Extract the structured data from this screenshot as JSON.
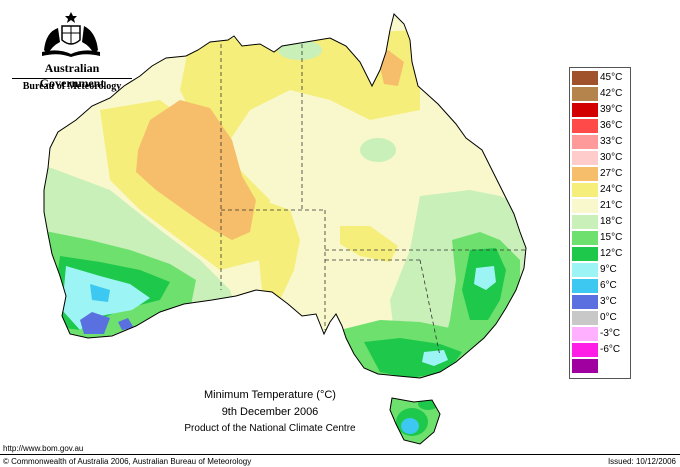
{
  "header": {
    "government": "Australian Government",
    "bureau": "Bureau of Meteorology"
  },
  "caption": {
    "title": "Minimum Temperature (°C)",
    "date": "9th December 2006",
    "product": "Product of the National Climate Centre"
  },
  "footer": {
    "url": "http://www.bom.gov.au",
    "copyright": "© Commonwealth of Australia 2006, Australian Bureau of Meteorology",
    "issued": "Issued: 10/12/2006"
  },
  "legend": [
    {
      "label": "45°C",
      "color": "#a0522d"
    },
    {
      "label": "42°C",
      "color": "#b5834c"
    },
    {
      "label": "39°C",
      "color": "#d20000"
    },
    {
      "label": "36°C",
      "color": "#ff4a4a"
    },
    {
      "label": "33°C",
      "color": "#ff9a9a"
    },
    {
      "label": "30°C",
      "color": "#ffcccc"
    },
    {
      "label": "27°C",
      "color": "#f6be6a"
    },
    {
      "label": "24°C",
      "color": "#f6ee7a"
    },
    {
      "label": "21°C",
      "color": "#f8f8cc"
    },
    {
      "label": "18°C",
      "color": "#c8f0b8"
    },
    {
      "label": "15°C",
      "color": "#6ee06e"
    },
    {
      "label": "12°C",
      "color": "#1ec84a"
    },
    {
      "label": "9°C",
      "color": "#9cf4f4"
    },
    {
      "label": "6°C",
      "color": "#3cc8f0"
    },
    {
      "label": "3°C",
      "color": "#5a70e0"
    },
    {
      "label": "0°C",
      "color": "#c8c8c8"
    },
    {
      "label": "-3°C",
      "color": "#ffb0ff"
    },
    {
      "label": "-6°C",
      "color": "#ff1ee6"
    },
    {
      "label": "",
      "color": "#a000a0"
    }
  ]
}
